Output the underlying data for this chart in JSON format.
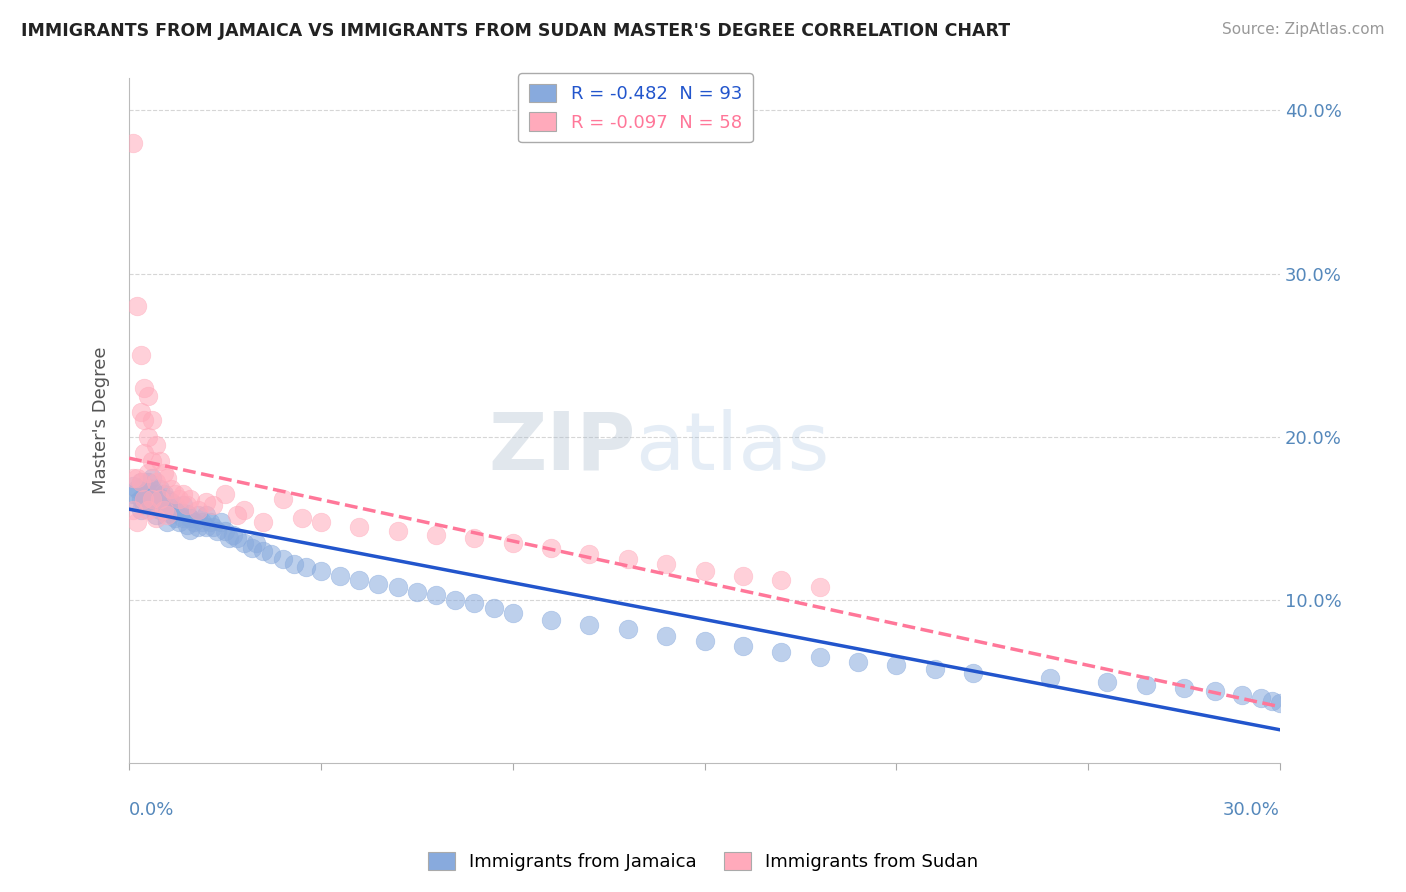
{
  "title": "IMMIGRANTS FROM JAMAICA VS IMMIGRANTS FROM SUDAN MASTER'S DEGREE CORRELATION CHART",
  "source": "Source: ZipAtlas.com",
  "ylabel": "Master's Degree",
  "xmin": 0.0,
  "xmax": 0.3,
  "ymin": 0.0,
  "ymax": 0.42,
  "R_jamaica": -0.482,
  "N_jamaica": 93,
  "R_sudan": -0.097,
  "N_sudan": 58,
  "color_jamaica": "#88AADD",
  "color_sudan": "#FFAABB",
  "color_jamaica_line": "#2255CC",
  "color_sudan_line": "#FF7799",
  "legend_label_jamaica": "Immigrants from Jamaica",
  "legend_label_sudan": "Immigrants from Sudan",
  "jamaica_x": [
    0.001,
    0.001,
    0.002,
    0.002,
    0.003,
    0.003,
    0.003,
    0.004,
    0.004,
    0.004,
    0.005,
    0.005,
    0.005,
    0.006,
    0.006,
    0.006,
    0.007,
    0.007,
    0.007,
    0.008,
    0.008,
    0.008,
    0.009,
    0.009,
    0.01,
    0.01,
    0.01,
    0.011,
    0.011,
    0.012,
    0.012,
    0.013,
    0.013,
    0.014,
    0.014,
    0.015,
    0.015,
    0.016,
    0.016,
    0.017,
    0.018,
    0.018,
    0.019,
    0.02,
    0.02,
    0.021,
    0.022,
    0.023,
    0.024,
    0.025,
    0.026,
    0.027,
    0.028,
    0.03,
    0.032,
    0.033,
    0.035,
    0.037,
    0.04,
    0.043,
    0.046,
    0.05,
    0.055,
    0.06,
    0.065,
    0.07,
    0.075,
    0.08,
    0.085,
    0.09,
    0.095,
    0.1,
    0.11,
    0.12,
    0.13,
    0.14,
    0.15,
    0.16,
    0.17,
    0.18,
    0.19,
    0.2,
    0.21,
    0.22,
    0.24,
    0.255,
    0.265,
    0.275,
    0.283,
    0.29,
    0.295,
    0.298,
    0.3
  ],
  "jamaica_y": [
    0.17,
    0.165,
    0.168,
    0.16,
    0.172,
    0.162,
    0.155,
    0.17,
    0.163,
    0.158,
    0.172,
    0.165,
    0.158,
    0.175,
    0.168,
    0.16,
    0.165,
    0.158,
    0.152,
    0.168,
    0.162,
    0.155,
    0.165,
    0.158,
    0.162,
    0.155,
    0.148,
    0.16,
    0.153,
    0.158,
    0.15,
    0.155,
    0.148,
    0.158,
    0.15,
    0.153,
    0.146,
    0.15,
    0.143,
    0.148,
    0.152,
    0.145,
    0.148,
    0.152,
    0.145,
    0.148,
    0.145,
    0.142,
    0.148,
    0.142,
    0.138,
    0.14,
    0.138,
    0.135,
    0.132,
    0.135,
    0.13,
    0.128,
    0.125,
    0.122,
    0.12,
    0.118,
    0.115,
    0.112,
    0.11,
    0.108,
    0.105,
    0.103,
    0.1,
    0.098,
    0.095,
    0.092,
    0.088,
    0.085,
    0.082,
    0.078,
    0.075,
    0.072,
    0.068,
    0.065,
    0.062,
    0.06,
    0.058,
    0.055,
    0.052,
    0.05,
    0.048,
    0.046,
    0.044,
    0.042,
    0.04,
    0.038,
    0.037
  ],
  "sudan_x": [
    0.001,
    0.001,
    0.001,
    0.002,
    0.002,
    0.002,
    0.003,
    0.003,
    0.003,
    0.004,
    0.004,
    0.004,
    0.004,
    0.005,
    0.005,
    0.005,
    0.005,
    0.006,
    0.006,
    0.006,
    0.007,
    0.007,
    0.007,
    0.008,
    0.008,
    0.009,
    0.009,
    0.01,
    0.01,
    0.011,
    0.012,
    0.013,
    0.014,
    0.015,
    0.016,
    0.018,
    0.02,
    0.022,
    0.025,
    0.028,
    0.03,
    0.035,
    0.04,
    0.045,
    0.05,
    0.06,
    0.07,
    0.08,
    0.09,
    0.1,
    0.11,
    0.12,
    0.13,
    0.14,
    0.15,
    0.16,
    0.17,
    0.18
  ],
  "sudan_y": [
    0.38,
    0.175,
    0.155,
    0.28,
    0.175,
    0.148,
    0.25,
    0.215,
    0.172,
    0.23,
    0.21,
    0.19,
    0.162,
    0.225,
    0.2,
    0.178,
    0.155,
    0.21,
    0.185,
    0.162,
    0.195,
    0.172,
    0.15,
    0.185,
    0.162,
    0.178,
    0.155,
    0.175,
    0.152,
    0.168,
    0.165,
    0.162,
    0.165,
    0.158,
    0.162,
    0.155,
    0.16,
    0.158,
    0.165,
    0.152,
    0.155,
    0.148,
    0.162,
    0.15,
    0.148,
    0.145,
    0.142,
    0.14,
    0.138,
    0.135,
    0.132,
    0.128,
    0.125,
    0.122,
    0.118,
    0.115,
    0.112,
    0.108
  ]
}
